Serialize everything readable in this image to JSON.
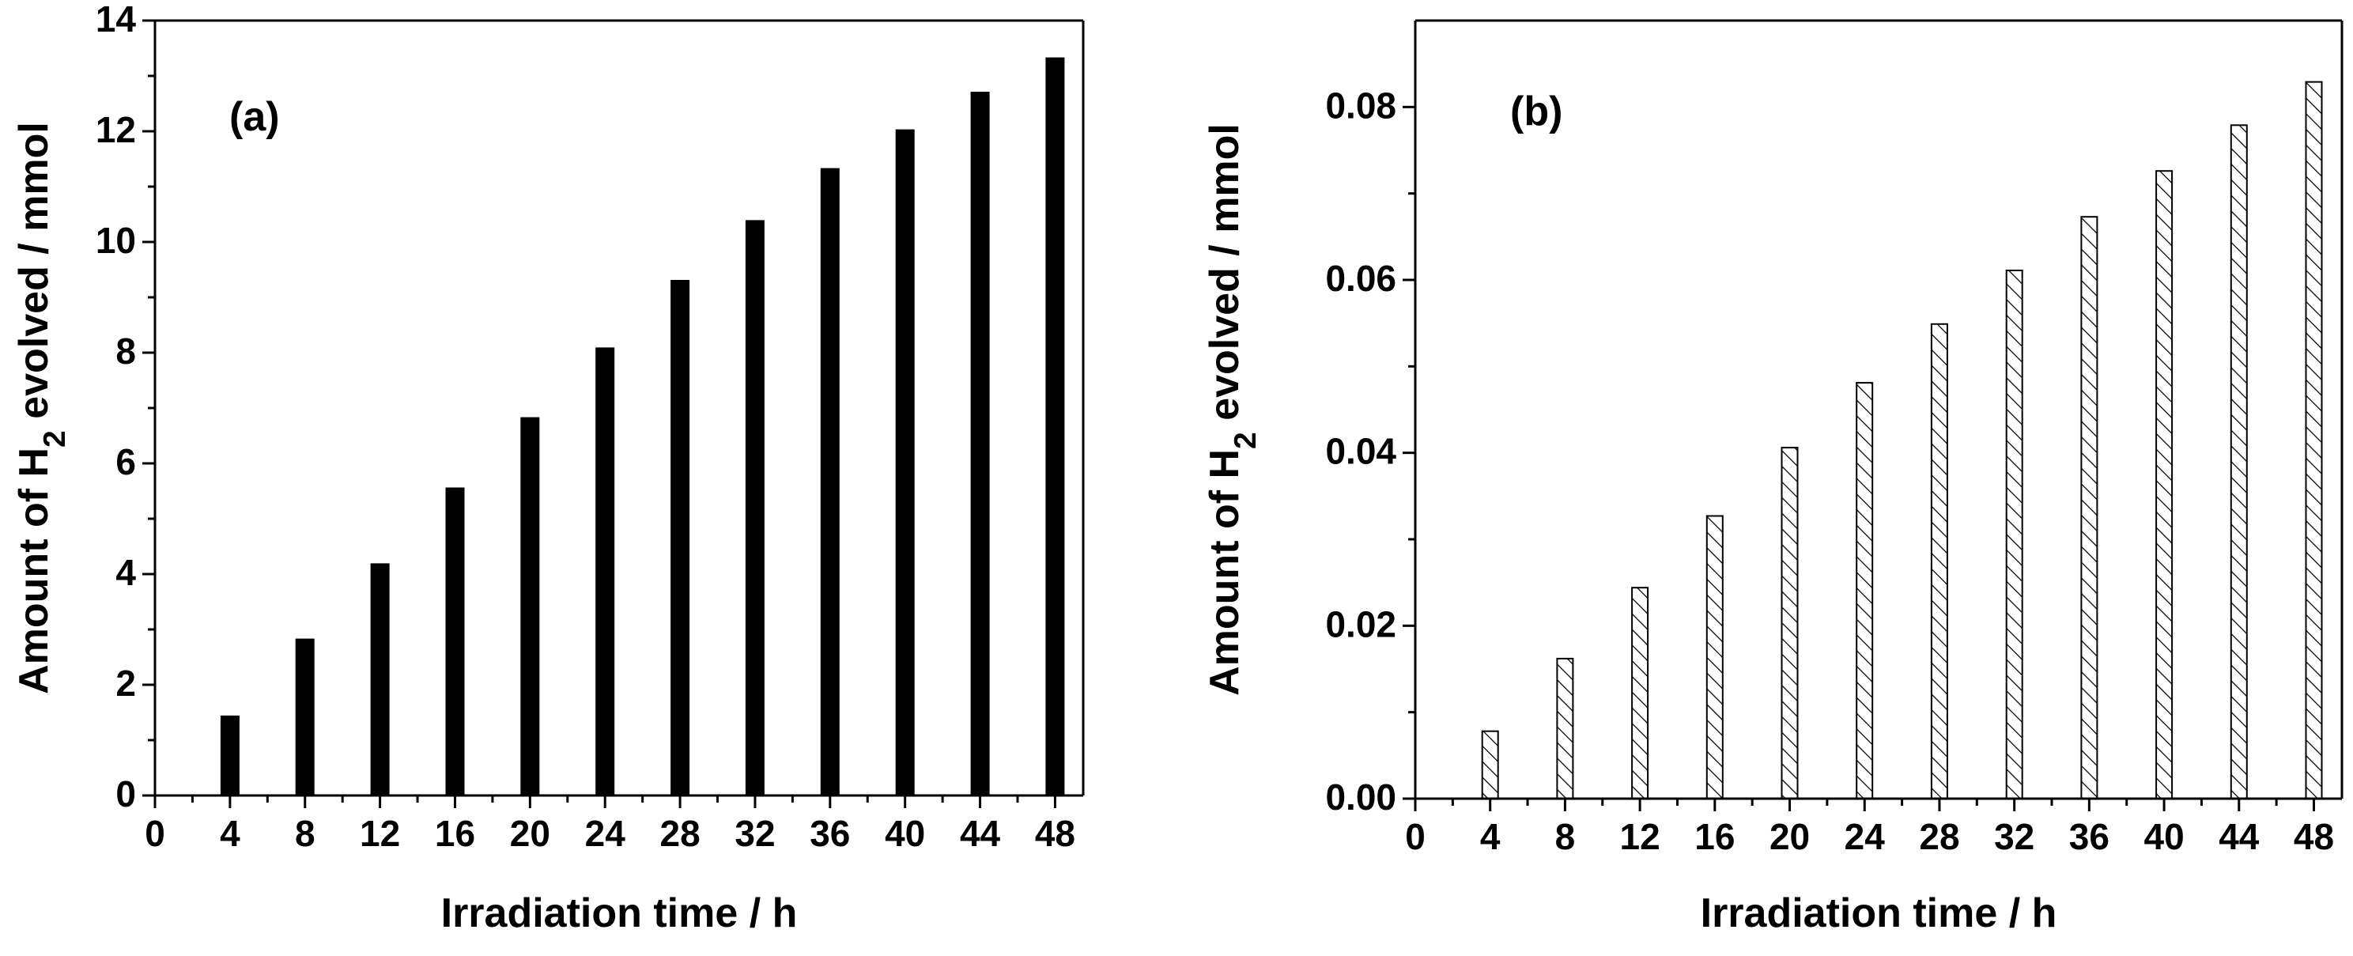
{
  "chart_data": [
    {
      "type": "bar",
      "panel_label": "(a)",
      "x": [
        4,
        8,
        12,
        16,
        20,
        24,
        28,
        32,
        36,
        40,
        44,
        48
      ],
      "values": [
        1.43,
        2.82,
        4.18,
        5.55,
        6.82,
        8.08,
        9.3,
        10.38,
        11.32,
        12.02,
        12.7,
        13.32
      ],
      "xlim": [
        0,
        49.5
      ],
      "ylim": [
        0,
        14
      ],
      "xticks": [
        0,
        4,
        8,
        12,
        16,
        20,
        24,
        28,
        32,
        36,
        40,
        44,
        48
      ],
      "yticks": [
        0,
        2,
        4,
        6,
        8,
        10,
        12,
        14
      ],
      "xtick_labels": [
        "0",
        "4",
        "8",
        "12",
        "16",
        "20",
        "24",
        "28",
        "32",
        "36",
        "40",
        "44",
        "48"
      ],
      "ytick_labels": [
        "0",
        "2",
        "4",
        "6",
        "8",
        "10",
        "12",
        "14"
      ],
      "xlabel": "Irradiation time / h",
      "ylabel_prefix": "Amount of H",
      "ylabel_subscript": "2",
      "ylabel_suffix": " evolved / mmol",
      "fill": "solid",
      "bar_color": "#000000"
    },
    {
      "type": "bar",
      "panel_label": "(b)",
      "x": [
        4,
        8,
        12,
        16,
        20,
        24,
        28,
        32,
        36,
        40,
        44,
        48
      ],
      "values": [
        0.0078,
        0.0162,
        0.0244,
        0.0327,
        0.0406,
        0.0481,
        0.0549,
        0.0611,
        0.0673,
        0.0726,
        0.0779,
        0.0829
      ],
      "xlim": [
        0,
        49.5
      ],
      "ylim": [
        0,
        0.09
      ],
      "xticks": [
        0,
        4,
        8,
        12,
        16,
        20,
        24,
        28,
        32,
        36,
        40,
        44,
        48
      ],
      "yticks": [
        0,
        0.02,
        0.04,
        0.06,
        0.08
      ],
      "xtick_labels": [
        "0",
        "4",
        "8",
        "12",
        "16",
        "20",
        "24",
        "28",
        "32",
        "36",
        "40",
        "44",
        "48"
      ],
      "ytick_labels": [
        "0.00",
        "0.02",
        "0.04",
        "0.06",
        "0.08"
      ],
      "xlabel": "Irradiation time / h",
      "ylabel_prefix": "Amount of H",
      "ylabel_subscript": "2",
      "ylabel_suffix": " evolved / mmol",
      "fill": "hatched",
      "bar_color": "#000000"
    }
  ]
}
